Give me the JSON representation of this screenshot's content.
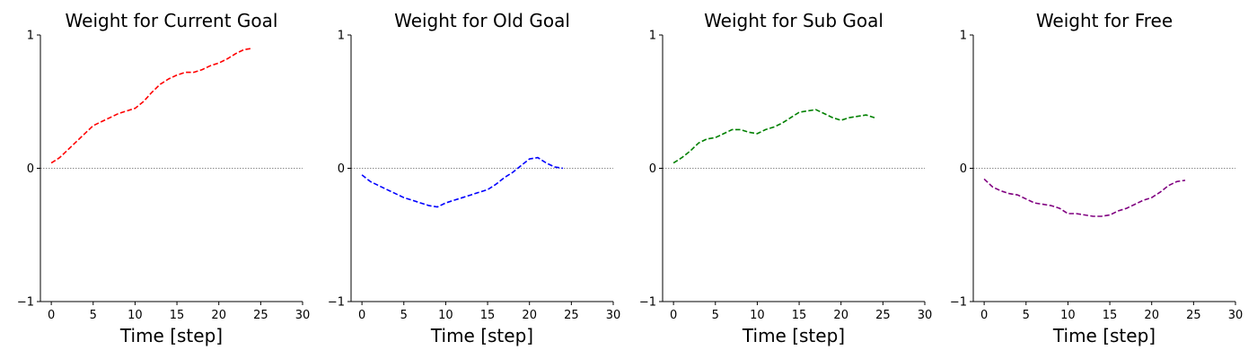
{
  "chart_data": [
    {
      "type": "line",
      "title": "Weight for Current Goal",
      "xlabel": "Time [step]",
      "ylabel": "",
      "xlim": [
        -1.3,
        30
      ],
      "ylim": [
        -1,
        1
      ],
      "xticks": [
        0,
        5,
        10,
        15,
        20,
        25,
        30
      ],
      "yticks": [
        -1,
        0,
        1
      ],
      "zero_line": true,
      "series": [
        {
          "color": "#ff0000",
          "style": "dashed",
          "x": [
            0,
            1,
            2,
            3,
            4,
            5,
            6,
            7,
            8,
            9,
            10,
            11,
            12,
            13,
            14,
            15,
            16,
            17,
            18,
            19,
            20,
            21,
            22,
            23,
            24
          ],
          "y": [
            0.04,
            0.08,
            0.14,
            0.2,
            0.26,
            0.32,
            0.35,
            0.38,
            0.41,
            0.43,
            0.45,
            0.5,
            0.57,
            0.63,
            0.67,
            0.7,
            0.72,
            0.72,
            0.74,
            0.77,
            0.79,
            0.82,
            0.86,
            0.89,
            0.9
          ]
        }
      ]
    },
    {
      "type": "line",
      "title": "Weight for Old Goal",
      "xlabel": "Time [step]",
      "ylabel": "",
      "xlim": [
        -1.3,
        30
      ],
      "ylim": [
        -1,
        1
      ],
      "xticks": [
        0,
        5,
        10,
        15,
        20,
        25,
        30
      ],
      "yticks": [
        -1,
        0,
        1
      ],
      "zero_line": true,
      "series": [
        {
          "color": "#0000ff",
          "style": "dashed",
          "x": [
            0,
            1,
            2,
            3,
            4,
            5,
            6,
            7,
            8,
            9,
            10,
            11,
            12,
            13,
            14,
            15,
            16,
            17,
            18,
            19,
            20,
            21,
            22,
            23,
            24
          ],
          "y": [
            -0.05,
            -0.1,
            -0.13,
            -0.16,
            -0.19,
            -0.22,
            -0.24,
            -0.26,
            -0.28,
            -0.29,
            -0.26,
            -0.24,
            -0.22,
            -0.2,
            -0.18,
            -0.16,
            -0.12,
            -0.07,
            -0.03,
            0.02,
            0.07,
            0.08,
            0.04,
            0.01,
            0.0
          ]
        }
      ]
    },
    {
      "type": "line",
      "title": "Weight for Sub Goal",
      "xlabel": "Time [step]",
      "ylabel": "",
      "xlim": [
        -1.3,
        30
      ],
      "ylim": [
        -1,
        1
      ],
      "xticks": [
        0,
        5,
        10,
        15,
        20,
        25,
        30
      ],
      "yticks": [
        -1,
        0,
        1
      ],
      "zero_line": true,
      "series": [
        {
          "color": "#008000",
          "style": "dashed",
          "x": [
            0,
            1,
            2,
            3,
            4,
            5,
            6,
            7,
            8,
            9,
            10,
            11,
            12,
            13,
            14,
            15,
            16,
            17,
            18,
            19,
            20,
            21,
            22,
            23,
            24
          ],
          "y": [
            0.04,
            0.08,
            0.13,
            0.19,
            0.22,
            0.23,
            0.26,
            0.29,
            0.29,
            0.27,
            0.26,
            0.29,
            0.31,
            0.34,
            0.38,
            0.42,
            0.43,
            0.44,
            0.41,
            0.38,
            0.36,
            0.38,
            0.39,
            0.4,
            0.38
          ]
        }
      ]
    },
    {
      "type": "line",
      "title": "Weight for Free",
      "xlabel": "Time [step]",
      "ylabel": "",
      "xlim": [
        -1.3,
        30
      ],
      "ylim": [
        -1,
        1
      ],
      "xticks": [
        0,
        5,
        10,
        15,
        20,
        25,
        30
      ],
      "yticks": [
        -1,
        0,
        1
      ],
      "zero_line": true,
      "series": [
        {
          "color": "#800080",
          "style": "dashed",
          "x": [
            0,
            1,
            2,
            3,
            4,
            5,
            6,
            7,
            8,
            9,
            10,
            11,
            12,
            13,
            14,
            15,
            16,
            17,
            18,
            19,
            20,
            21,
            22,
            23,
            24
          ],
          "y": [
            -0.08,
            -0.14,
            -0.17,
            -0.19,
            -0.2,
            -0.23,
            -0.26,
            -0.27,
            -0.28,
            -0.3,
            -0.34,
            -0.34,
            -0.35,
            -0.36,
            -0.36,
            -0.35,
            -0.32,
            -0.3,
            -0.27,
            -0.24,
            -0.22,
            -0.18,
            -0.13,
            -0.1,
            -0.09
          ]
        }
      ]
    }
  ]
}
